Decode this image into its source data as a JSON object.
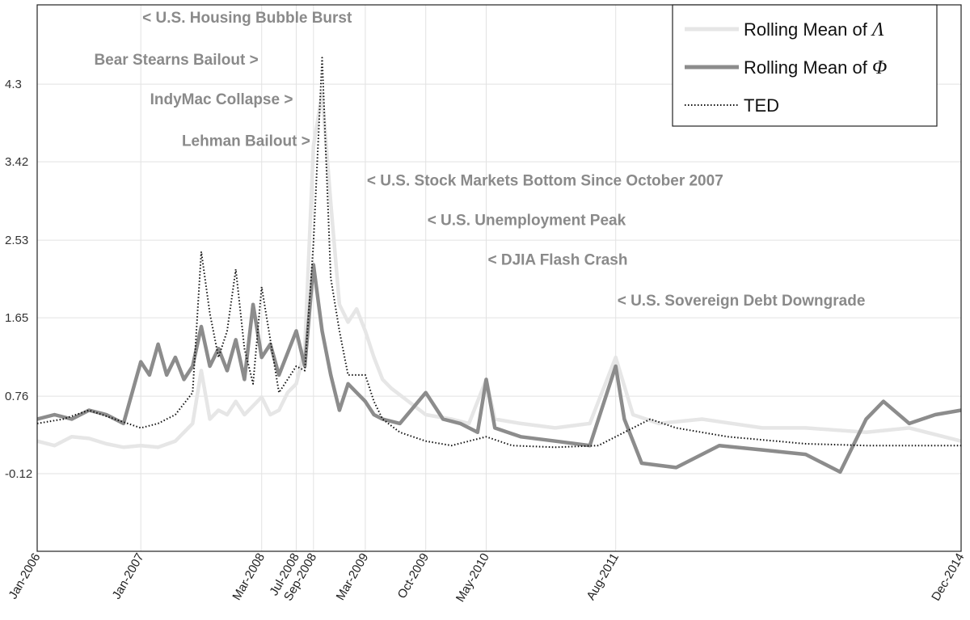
{
  "chart_data": {
    "type": "line",
    "title": "",
    "xlabel": "",
    "ylabel": "",
    "xlim": [
      "Jan-2006",
      "Dec-2014"
    ],
    "ylim": [
      -1.0,
      5.2
    ],
    "grid": true,
    "legend_position": "top-right",
    "yticks": [
      -0.12,
      0.76,
      1.65,
      2.53,
      3.42,
      4.3
    ],
    "ytick_labels": [
      "-0.12",
      "0.76",
      "1.65",
      "2.53",
      "3.42",
      "4.3"
    ],
    "xticks": [
      "2006-01",
      "2007-01",
      "2008-03",
      "2008-07",
      "2008-09",
      "2009-03",
      "2009-10",
      "2010-05",
      "2011-08",
      "2014-12"
    ],
    "xtick_labels": [
      "Jan-2006",
      "Jan-2007",
      "Mar-2008",
      "Jul-2008",
      "Sep-2008",
      "Mar-2009",
      "Oct-2009",
      "May-2010",
      "Aug-2011",
      "Dec-2014"
    ],
    "annotations": [
      {
        "text": "< U.S. Housing Bubble Burst",
        "date": "2007-01",
        "y": 5.0,
        "anchor": "start"
      },
      {
        "text": "Bear Stearns Bailout >",
        "date": "2008-03",
        "y": 4.52,
        "anchor": "end"
      },
      {
        "text": "IndyMac Collapse >",
        "date": "2008-07",
        "y": 4.07,
        "anchor": "end"
      },
      {
        "text": "Lehman Bailout >",
        "date": "2008-09",
        "y": 3.6,
        "anchor": "end"
      },
      {
        "text": "< U.S. Stock Markets Bottom Since October 2007",
        "date": "2009-03",
        "y": 3.15,
        "anchor": "start"
      },
      {
        "text": "< U.S. Unemployment Peak",
        "date": "2009-10",
        "y": 2.7,
        "anchor": "start"
      },
      {
        "text": "< DJIA Flash Crash",
        "date": "2010-05",
        "y": 2.25,
        "anchor": "start"
      },
      {
        "text": "< U.S. Sovereign Debt Downgrade",
        "date": "2011-08",
        "y": 1.79,
        "anchor": "start"
      }
    ],
    "series": [
      {
        "name": "Rolling Mean of Λ",
        "label_text": "Rolling Mean of ",
        "label_symbol": "Λ",
        "color": "#e6e6e6",
        "style": "solid",
        "points": [
          [
            "2006-01",
            0.25
          ],
          [
            "2006-03",
            0.2
          ],
          [
            "2006-05",
            0.3
          ],
          [
            "2006-07",
            0.28
          ],
          [
            "2006-09",
            0.22
          ],
          [
            "2006-11",
            0.18
          ],
          [
            "2007-01",
            0.2
          ],
          [
            "2007-03",
            0.18
          ],
          [
            "2007-05",
            0.25
          ],
          [
            "2007-06",
            0.35
          ],
          [
            "2007-07",
            0.45
          ],
          [
            "2007-08",
            1.05
          ],
          [
            "2007-09",
            0.5
          ],
          [
            "2007-10",
            0.6
          ],
          [
            "2007-11",
            0.55
          ],
          [
            "2007-12",
            0.7
          ],
          [
            "2008-01",
            0.55
          ],
          [
            "2008-02",
            0.65
          ],
          [
            "2008-03",
            0.75
          ],
          [
            "2008-04",
            0.55
          ],
          [
            "2008-05",
            0.6
          ],
          [
            "2008-06",
            0.8
          ],
          [
            "2008-07",
            0.9
          ],
          [
            "2008-08",
            1.3
          ],
          [
            "2008-09",
            3.6
          ],
          [
            "2008-10",
            4.2
          ],
          [
            "2008-11",
            2.95
          ],
          [
            "2008-12",
            1.8
          ],
          [
            "2009-01",
            1.6
          ],
          [
            "2009-02",
            1.75
          ],
          [
            "2009-03",
            1.5
          ],
          [
            "2009-04",
            1.2
          ],
          [
            "2009-05",
            0.95
          ],
          [
            "2009-06",
            0.85
          ],
          [
            "2009-08",
            0.7
          ],
          [
            "2009-10",
            0.55
          ],
          [
            "2010-01",
            0.5
          ],
          [
            "2010-03",
            0.45
          ],
          [
            "2010-05",
            0.95
          ],
          [
            "2010-06",
            0.5
          ],
          [
            "2010-09",
            0.45
          ],
          [
            "2011-01",
            0.4
          ],
          [
            "2011-05",
            0.45
          ],
          [
            "2011-08",
            1.2
          ],
          [
            "2011-10",
            0.55
          ],
          [
            "2012-01",
            0.45
          ],
          [
            "2012-06",
            0.5
          ],
          [
            "2013-01",
            0.4
          ],
          [
            "2013-06",
            0.4
          ],
          [
            "2014-01",
            0.35
          ],
          [
            "2014-06",
            0.4
          ],
          [
            "2014-12",
            0.25
          ]
        ]
      },
      {
        "name": "Rolling Mean of Φ",
        "label_text": "Rolling Mean of ",
        "label_symbol": "Φ",
        "color": "#8c8c8c",
        "style": "solid",
        "points": [
          [
            "2006-01",
            0.5
          ],
          [
            "2006-03",
            0.55
          ],
          [
            "2006-05",
            0.5
          ],
          [
            "2006-07",
            0.6
          ],
          [
            "2006-09",
            0.55
          ],
          [
            "2006-11",
            0.45
          ],
          [
            "2007-01",
            1.15
          ],
          [
            "2007-02",
            1.0
          ],
          [
            "2007-03",
            1.35
          ],
          [
            "2007-04",
            1.0
          ],
          [
            "2007-05",
            1.2
          ],
          [
            "2007-06",
            0.95
          ],
          [
            "2007-07",
            1.1
          ],
          [
            "2007-08",
            1.55
          ],
          [
            "2007-09",
            1.1
          ],
          [
            "2007-10",
            1.3
          ],
          [
            "2007-11",
            1.05
          ],
          [
            "2007-12",
            1.4
          ],
          [
            "2008-01",
            0.95
          ],
          [
            "2008-02",
            1.8
          ],
          [
            "2008-03",
            1.2
          ],
          [
            "2008-04",
            1.35
          ],
          [
            "2008-05",
            1.0
          ],
          [
            "2008-06",
            1.25
          ],
          [
            "2008-07",
            1.5
          ],
          [
            "2008-08",
            1.1
          ],
          [
            "2008-09",
            2.25
          ],
          [
            "2008-10",
            1.5
          ],
          [
            "2008-11",
            1.0
          ],
          [
            "2008-12",
            0.6
          ],
          [
            "2009-01",
            0.9
          ],
          [
            "2009-02",
            0.8
          ],
          [
            "2009-03",
            0.7
          ],
          [
            "2009-04",
            0.55
          ],
          [
            "2009-05",
            0.5
          ],
          [
            "2009-07",
            0.45
          ],
          [
            "2009-10",
            0.8
          ],
          [
            "2009-12",
            0.5
          ],
          [
            "2010-02",
            0.45
          ],
          [
            "2010-04",
            0.35
          ],
          [
            "2010-05",
            0.95
          ],
          [
            "2010-06",
            0.4
          ],
          [
            "2010-09",
            0.3
          ],
          [
            "2011-01",
            0.25
          ],
          [
            "2011-05",
            0.2
          ],
          [
            "2011-08",
            1.1
          ],
          [
            "2011-09",
            0.5
          ],
          [
            "2011-11",
            0.0
          ],
          [
            "2012-03",
            -0.05
          ],
          [
            "2012-08",
            0.2
          ],
          [
            "2013-01",
            0.15
          ],
          [
            "2013-06",
            0.1
          ],
          [
            "2013-10",
            -0.1
          ],
          [
            "2014-01",
            0.5
          ],
          [
            "2014-03",
            0.7
          ],
          [
            "2014-06",
            0.45
          ],
          [
            "2014-09",
            0.55
          ],
          [
            "2014-12",
            0.6
          ]
        ]
      },
      {
        "name": "TED",
        "label_text": "TED",
        "label_symbol": "",
        "color": "#111111",
        "style": "dotted",
        "points": [
          [
            "2006-01",
            0.45
          ],
          [
            "2006-04",
            0.5
          ],
          [
            "2006-07",
            0.6
          ],
          [
            "2006-10",
            0.5
          ],
          [
            "2007-01",
            0.4
          ],
          [
            "2007-03",
            0.45
          ],
          [
            "2007-05",
            0.55
          ],
          [
            "2007-07",
            0.8
          ],
          [
            "2007-08",
            2.4
          ],
          [
            "2007-09",
            1.7
          ],
          [
            "2007-10",
            1.2
          ],
          [
            "2007-11",
            1.5
          ],
          [
            "2007-12",
            2.2
          ],
          [
            "2008-01",
            1.3
          ],
          [
            "2008-02",
            0.9
          ],
          [
            "2008-03",
            2.0
          ],
          [
            "2008-04",
            1.4
          ],
          [
            "2008-05",
            0.8
          ],
          [
            "2008-06",
            0.95
          ],
          [
            "2008-07",
            1.1
          ],
          [
            "2008-08",
            1.05
          ],
          [
            "2008-09",
            2.5
          ],
          [
            "2008-10",
            4.6
          ],
          [
            "2008-11",
            2.1
          ],
          [
            "2008-12",
            1.5
          ],
          [
            "2009-01",
            1.0
          ],
          [
            "2009-02",
            1.0
          ],
          [
            "2009-03",
            1.0
          ],
          [
            "2009-04",
            0.7
          ],
          [
            "2009-05",
            0.5
          ],
          [
            "2009-07",
            0.35
          ],
          [
            "2009-10",
            0.25
          ],
          [
            "2010-01",
            0.2
          ],
          [
            "2010-05",
            0.3
          ],
          [
            "2010-08",
            0.2
          ],
          [
            "2011-01",
            0.18
          ],
          [
            "2011-06",
            0.2
          ],
          [
            "2011-09",
            0.35
          ],
          [
            "2011-12",
            0.5
          ],
          [
            "2012-03",
            0.4
          ],
          [
            "2012-09",
            0.3
          ],
          [
            "2013-06",
            0.22
          ],
          [
            "2014-01",
            0.2
          ],
          [
            "2014-12",
            0.2
          ]
        ]
      }
    ]
  }
}
